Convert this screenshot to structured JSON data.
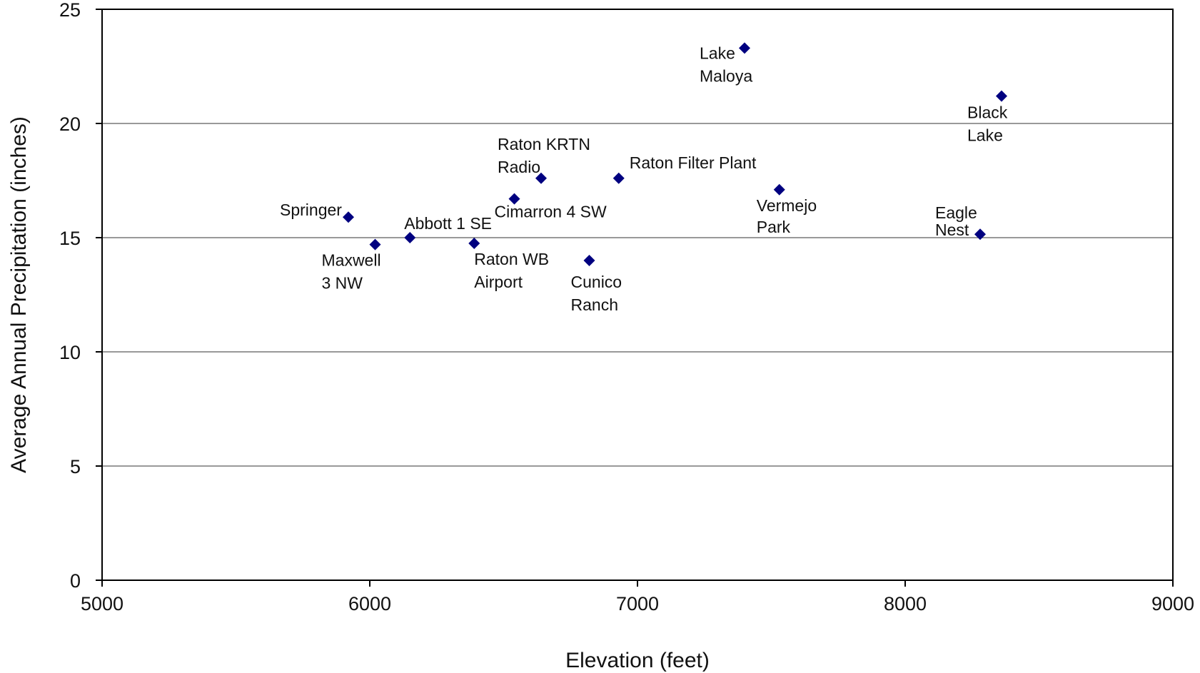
{
  "chart_data": {
    "type": "scatter",
    "title": "",
    "xlabel": "Elevation (feet)",
    "ylabel": "Average Annual Precipitation (inches)",
    "xlim": [
      5000,
      9000
    ],
    "ylim": [
      0,
      25
    ],
    "xticks": [
      5000,
      6000,
      7000,
      8000,
      9000
    ],
    "yticks": [
      0,
      5,
      10,
      15,
      20,
      25
    ],
    "grid": "horizontal",
    "marker": "diamond",
    "marker_color": "#000080",
    "points": [
      {
        "name": "Springer",
        "label_lines": [
          "Springer"
        ],
        "x": 5920,
        "y": 15.9
      },
      {
        "name": "Maxwell 3 NW",
        "label_lines": [
          "Maxwell",
          "3 NW"
        ],
        "x": 6020,
        "y": 14.7
      },
      {
        "name": "Abbott 1 SE",
        "label_lines": [
          "Abbott 1 SE"
        ],
        "x": 6150,
        "y": 15.0
      },
      {
        "name": "Raton WB Airport",
        "label_lines": [
          "Raton WB",
          "Airport"
        ],
        "x": 6390,
        "y": 14.75
      },
      {
        "name": "Cimarron 4 SW",
        "label_lines": [
          "Cimarron 4 SW"
        ],
        "x": 6540,
        "y": 16.7
      },
      {
        "name": "Raton KRTN Radio",
        "label_lines": [
          "Raton KRTN",
          "Radio"
        ],
        "x": 6640,
        "y": 17.6
      },
      {
        "name": "Cunico Ranch",
        "label_lines": [
          "Cunico",
          "Ranch"
        ],
        "x": 6820,
        "y": 14.0
      },
      {
        "name": "Raton Filter Plant",
        "label_lines": [
          "Raton Filter Plant"
        ],
        "x": 6930,
        "y": 17.6
      },
      {
        "name": "Lake Maloya",
        "label_lines": [
          "Lake",
          "Maloya"
        ],
        "x": 7400,
        "y": 23.3
      },
      {
        "name": "Vermejo Park",
        "label_lines": [
          "Vermejo",
          "Park"
        ],
        "x": 7530,
        "y": 17.1
      },
      {
        "name": "Eagle Nest",
        "label_lines": [
          "Eagle",
          "Nest"
        ],
        "x": 8280,
        "y": 15.15
      },
      {
        "name": "Black Lake",
        "label_lines": [
          "Black",
          "Lake"
        ],
        "x": 8360,
        "y": 21.2
      }
    ]
  }
}
